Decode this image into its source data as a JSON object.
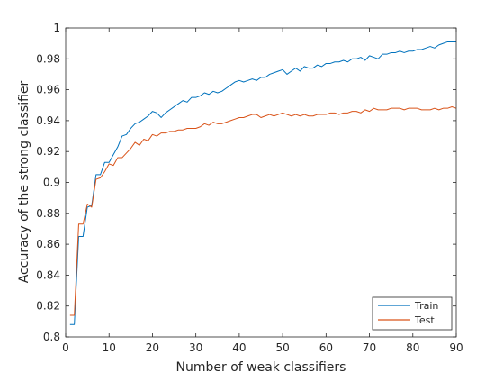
{
  "chart_data": {
    "type": "line",
    "title": "",
    "xlabel": "Number of weak classifiers",
    "ylabel": "Accuracy of the strong classifier",
    "xlim": [
      0,
      90
    ],
    "ylim": [
      0.8,
      1.0
    ],
    "xticks": [
      0,
      10,
      20,
      30,
      40,
      50,
      60,
      70,
      80,
      90
    ],
    "yticks": [
      0.8,
      0.82,
      0.84,
      0.86,
      0.88,
      0.9,
      0.92,
      0.94,
      0.96,
      0.98,
      1.0
    ],
    "xtick_labels": [
      "0",
      "10",
      "20",
      "30",
      "40",
      "50",
      "60",
      "70",
      "80",
      "90"
    ],
    "ytick_labels": [
      "0.8",
      "0.82",
      "0.84",
      "0.86",
      "0.88",
      "0.9",
      "0.92",
      "0.94",
      "0.96",
      "0.98",
      "1"
    ],
    "grid": false,
    "legend_position": "bottom-right",
    "series": [
      {
        "name": "Train",
        "color": "#0072BD",
        "x": [
          1,
          2,
          3,
          4,
          5,
          6,
          7,
          8,
          9,
          10,
          11,
          12,
          13,
          14,
          15,
          16,
          17,
          18,
          19,
          20,
          21,
          22,
          23,
          24,
          25,
          26,
          27,
          28,
          29,
          30,
          31,
          32,
          33,
          34,
          35,
          36,
          37,
          38,
          39,
          40,
          41,
          42,
          43,
          44,
          45,
          46,
          47,
          48,
          49,
          50,
          51,
          52,
          53,
          54,
          55,
          56,
          57,
          58,
          59,
          60,
          61,
          62,
          63,
          64,
          65,
          66,
          67,
          68,
          69,
          70,
          71,
          72,
          73,
          74,
          75,
          76,
          77,
          78,
          79,
          80,
          81,
          82,
          83,
          84,
          85,
          86,
          87,
          88,
          89,
          90
        ],
        "y": [
          0.808,
          0.808,
          0.865,
          0.865,
          0.884,
          0.885,
          0.905,
          0.905,
          0.913,
          0.913,
          0.918,
          0.923,
          0.93,
          0.931,
          0.935,
          0.938,
          0.939,
          0.941,
          0.943,
          0.946,
          0.945,
          0.942,
          0.945,
          0.947,
          0.949,
          0.951,
          0.953,
          0.952,
          0.955,
          0.955,
          0.956,
          0.958,
          0.957,
          0.959,
          0.958,
          0.959,
          0.961,
          0.963,
          0.965,
          0.966,
          0.965,
          0.966,
          0.967,
          0.966,
          0.968,
          0.968,
          0.97,
          0.971,
          0.972,
          0.973,
          0.97,
          0.972,
          0.974,
          0.972,
          0.975,
          0.974,
          0.974,
          0.976,
          0.975,
          0.977,
          0.977,
          0.978,
          0.978,
          0.979,
          0.978,
          0.98,
          0.98,
          0.981,
          0.979,
          0.982,
          0.981,
          0.98,
          0.983,
          0.983,
          0.984,
          0.984,
          0.985,
          0.984,
          0.985,
          0.985,
          0.986,
          0.986,
          0.987,
          0.988,
          0.987,
          0.989,
          0.99,
          0.991,
          0.991,
          0.991
        ]
      },
      {
        "name": "Test",
        "color": "#D95319",
        "x": [
          1,
          2,
          3,
          4,
          5,
          6,
          7,
          8,
          9,
          10,
          11,
          12,
          13,
          14,
          15,
          16,
          17,
          18,
          19,
          20,
          21,
          22,
          23,
          24,
          25,
          26,
          27,
          28,
          29,
          30,
          31,
          32,
          33,
          34,
          35,
          36,
          37,
          38,
          39,
          40,
          41,
          42,
          43,
          44,
          45,
          46,
          47,
          48,
          49,
          50,
          51,
          52,
          53,
          54,
          55,
          56,
          57,
          58,
          59,
          60,
          61,
          62,
          63,
          64,
          65,
          66,
          67,
          68,
          69,
          70,
          71,
          72,
          73,
          74,
          75,
          76,
          77,
          78,
          79,
          80,
          81,
          82,
          83,
          84,
          85,
          86,
          87,
          88,
          89,
          90
        ],
        "y": [
          0.814,
          0.814,
          0.873,
          0.873,
          0.886,
          0.884,
          0.902,
          0.903,
          0.907,
          0.912,
          0.911,
          0.916,
          0.916,
          0.919,
          0.922,
          0.926,
          0.924,
          0.928,
          0.927,
          0.931,
          0.93,
          0.932,
          0.932,
          0.933,
          0.933,
          0.934,
          0.934,
          0.935,
          0.935,
          0.935,
          0.936,
          0.938,
          0.937,
          0.939,
          0.938,
          0.938,
          0.939,
          0.94,
          0.941,
          0.942,
          0.942,
          0.943,
          0.944,
          0.944,
          0.942,
          0.943,
          0.944,
          0.943,
          0.944,
          0.945,
          0.944,
          0.943,
          0.944,
          0.943,
          0.944,
          0.943,
          0.943,
          0.944,
          0.944,
          0.944,
          0.945,
          0.945,
          0.944,
          0.945,
          0.945,
          0.946,
          0.946,
          0.945,
          0.947,
          0.946,
          0.948,
          0.947,
          0.947,
          0.947,
          0.948,
          0.948,
          0.948,
          0.947,
          0.948,
          0.948,
          0.948,
          0.947,
          0.947,
          0.947,
          0.948,
          0.947,
          0.948,
          0.948,
          0.949,
          0.948
        ]
      }
    ]
  }
}
